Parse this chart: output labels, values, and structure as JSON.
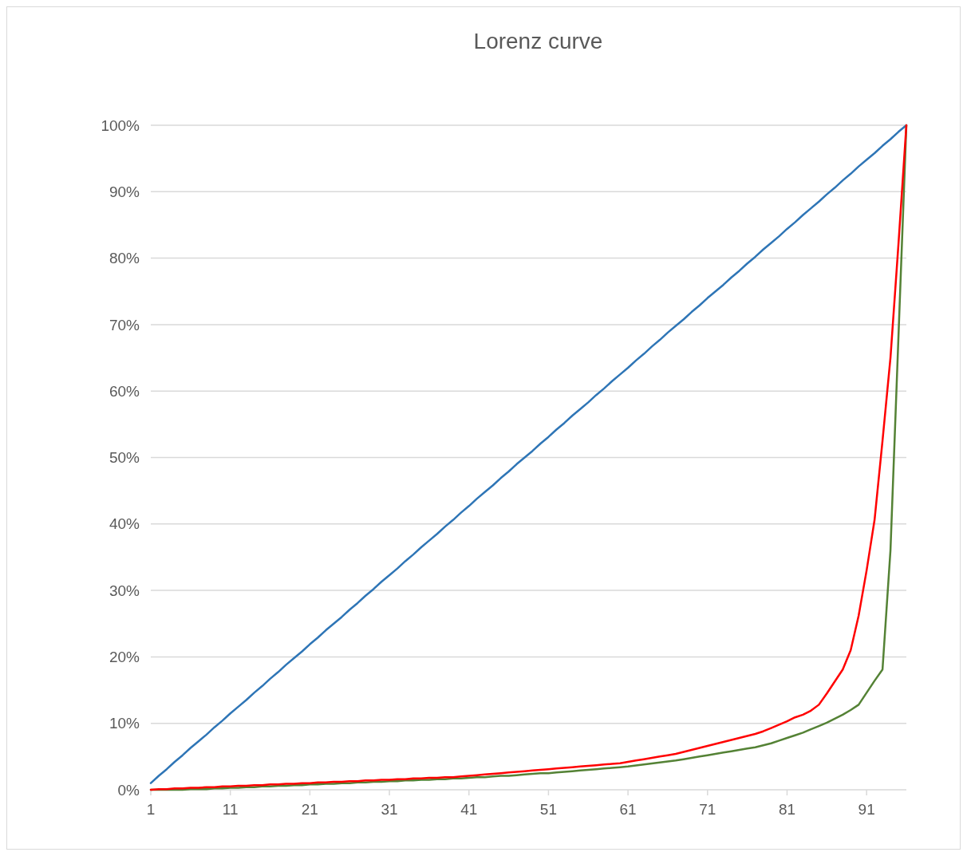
{
  "chart_data": {
    "type": "line",
    "title": "Lorenz curve",
    "categories": [
      "1",
      null,
      null,
      null,
      null,
      null,
      null,
      null,
      null,
      null,
      "11",
      null,
      null,
      null,
      null,
      null,
      null,
      null,
      null,
      null,
      "21",
      null,
      null,
      null,
      null,
      null,
      null,
      null,
      null,
      null,
      "31",
      null,
      null,
      null,
      null,
      null,
      null,
      null,
      null,
      null,
      "41",
      null,
      null,
      null,
      null,
      null,
      null,
      null,
      null,
      null,
      "51",
      null,
      null,
      null,
      null,
      null,
      null,
      null,
      null,
      null,
      "61",
      null,
      null,
      null,
      null,
      null,
      null,
      null,
      null,
      null,
      "71",
      null,
      null,
      null,
      null,
      null,
      null,
      null,
      null,
      null,
      "81",
      null,
      null,
      null,
      null,
      null,
      null,
      null,
      null,
      null,
      "91",
      null,
      null,
      null,
      null,
      null
    ],
    "series": [
      {
        "color": "#2e75b6",
        "values": [
          1.0,
          2.1,
          3.1,
          4.2,
          5.2,
          6.3,
          7.3,
          8.3,
          9.4,
          10.4,
          11.5,
          12.5,
          13.5,
          14.6,
          15.6,
          16.7,
          17.7,
          18.8,
          19.8,
          20.8,
          21.9,
          22.9,
          24.0,
          25.0,
          26.0,
          27.1,
          28.1,
          29.2,
          30.2,
          31.3,
          32.3,
          33.3,
          34.4,
          35.4,
          36.5,
          37.5,
          38.5,
          39.6,
          40.6,
          41.7,
          42.7,
          43.8,
          44.8,
          45.8,
          46.9,
          47.9,
          49.0,
          50.0,
          51.0,
          52.1,
          53.1,
          54.2,
          55.2,
          56.3,
          57.3,
          58.3,
          59.4,
          60.4,
          61.5,
          62.5,
          63.5,
          64.6,
          65.6,
          66.7,
          67.7,
          68.8,
          69.8,
          70.8,
          71.9,
          72.9,
          74.0,
          75.0,
          76.0,
          77.1,
          78.1,
          79.2,
          80.2,
          81.3,
          82.3,
          83.3,
          84.4,
          85.4,
          86.5,
          87.5,
          88.5,
          89.6,
          90.6,
          91.7,
          92.7,
          93.8,
          94.8,
          95.8,
          96.9,
          97.9,
          99.0,
          100.0
        ]
      },
      {
        "color": "#548235",
        "values": [
          0,
          0,
          0,
          0,
          0,
          0.1,
          0.1,
          0.1,
          0.2,
          0.2,
          0.3,
          0.3,
          0.4,
          0.4,
          0.5,
          0.5,
          0.6,
          0.6,
          0.7,
          0.7,
          0.8,
          0.8,
          0.9,
          0.9,
          1.0,
          1.0,
          1.1,
          1.1,
          1.2,
          1.2,
          1.3,
          1.3,
          1.4,
          1.4,
          1.5,
          1.5,
          1.6,
          1.6,
          1.7,
          1.7,
          1.8,
          1.9,
          1.9,
          2.0,
          2.1,
          2.1,
          2.2,
          2.3,
          2.4,
          2.5,
          2.5,
          2.6,
          2.7,
          2.8,
          2.9,
          3.0,
          3.1,
          3.2,
          3.3,
          3.4,
          3.5,
          3.65,
          3.8,
          3.95,
          4.1,
          4.25,
          4.4,
          4.6,
          4.8,
          5.0,
          5.2,
          5.4,
          5.6,
          5.8,
          6.0,
          6.2,
          6.4,
          6.7,
          7.0,
          7.4,
          7.8,
          8.2,
          8.6,
          9.1,
          9.6,
          10.1,
          10.7,
          11.3,
          12.0,
          12.8,
          14.6,
          16.4,
          18.1,
          36,
          68,
          100
        ]
      },
      {
        "color": "#ff0000",
        "values": [
          0,
          0.1,
          0.1,
          0.2,
          0.2,
          0.3,
          0.3,
          0.4,
          0.4,
          0.5,
          0.5,
          0.6,
          0.6,
          0.7,
          0.7,
          0.8,
          0.8,
          0.9,
          0.9,
          1.0,
          1.0,
          1.1,
          1.1,
          1.2,
          1.2,
          1.3,
          1.3,
          1.4,
          1.4,
          1.5,
          1.5,
          1.6,
          1.6,
          1.7,
          1.7,
          1.8,
          1.8,
          1.9,
          1.9,
          2.0,
          2.1,
          2.2,
          2.3,
          2.4,
          2.5,
          2.6,
          2.7,
          2.8,
          2.9,
          3.0,
          3.1,
          3.2,
          3.3,
          3.4,
          3.5,
          3.6,
          3.7,
          3.8,
          3.9,
          4.0,
          4.2,
          4.4,
          4.6,
          4.8,
          5.0,
          5.2,
          5.4,
          5.7,
          6.0,
          6.3,
          6.6,
          6.9,
          7.2,
          7.5,
          7.8,
          8.1,
          8.4,
          8.8,
          9.3,
          9.8,
          10.3,
          10.9,
          11.3,
          11.9,
          12.8,
          14.5,
          16.3,
          18.1,
          21,
          26.2,
          33,
          40.6,
          52.5,
          65,
          82,
          100
        ]
      }
    ],
    "ylim": [
      0,
      100
    ],
    "yticks": [
      {
        "value": 0,
        "label": "0%"
      },
      {
        "value": 10,
        "label": "10%"
      },
      {
        "value": 20,
        "label": "20%"
      },
      {
        "value": 30,
        "label": "30%"
      },
      {
        "value": 40,
        "label": "40%"
      },
      {
        "value": 50,
        "label": "50%"
      },
      {
        "value": 60,
        "label": "60%"
      },
      {
        "value": 70,
        "label": "70%"
      },
      {
        "value": 80,
        "label": "80%"
      },
      {
        "value": 90,
        "label": "90%"
      },
      {
        "value": 100,
        "label": "100%"
      }
    ],
    "grid": "y"
  }
}
